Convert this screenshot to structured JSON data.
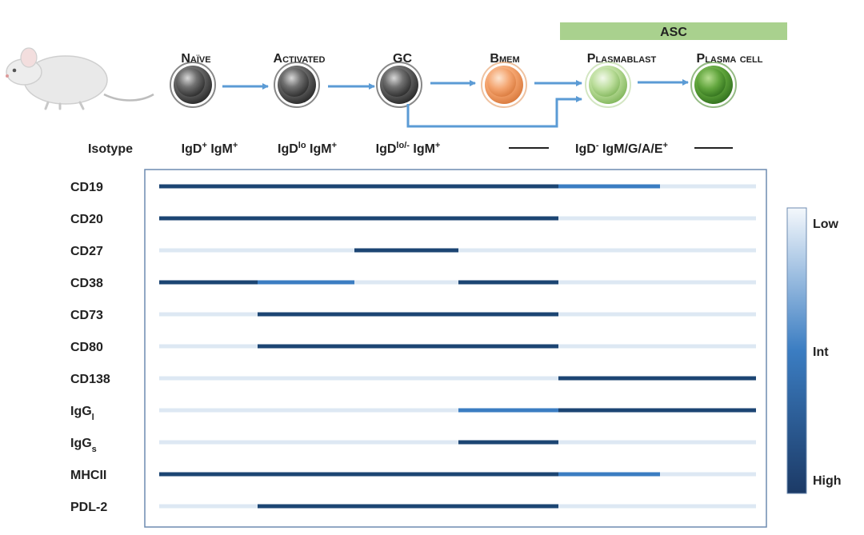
{
  "header": {
    "asc_label": "ASC",
    "stages": [
      {
        "name": "Naïve",
        "cell_color": "grey"
      },
      {
        "name": "Activated",
        "cell_color": "grey"
      },
      {
        "name": "GC",
        "cell_color": "grey"
      },
      {
        "name": "Bmem",
        "cell_color": "orange"
      },
      {
        "name": "Plasmablast",
        "cell_color": "light-green"
      },
      {
        "name": "Plasma cell",
        "cell_color": "green"
      }
    ]
  },
  "isotype": {
    "label": "Isotype",
    "naive": {
      "a": "IgD",
      "a_sup": "+",
      "b": " IgM",
      "b_sup": "+"
    },
    "activated": {
      "a": "IgD",
      "a_sup": "lo",
      "b": " IgM",
      "b_sup": "+"
    },
    "gc": {
      "a": "IgD",
      "a_sup": "lo/-",
      "b": " IgM",
      "b_sup": "+"
    },
    "late": {
      "a": "IgD",
      "a_sup": "-",
      "b": " IgM/G/A/E",
      "b_sup": "+"
    }
  },
  "markers": [
    {
      "name": "CD19",
      "levels": [
        "high",
        "high",
        "high",
        "high",
        "int",
        "low"
      ]
    },
    {
      "name": "CD20",
      "levels": [
        "high",
        "high",
        "high",
        "high",
        "low",
        "low"
      ]
    },
    {
      "name": "CD27",
      "levels": [
        "low",
        "low",
        "high",
        "low",
        "low",
        "low"
      ]
    },
    {
      "name": "CD38",
      "levels": [
        "high",
        "int",
        "low",
        "high",
        "low",
        "low"
      ]
    },
    {
      "name": "CD73",
      "levels": [
        "low",
        "high",
        "high",
        "high",
        "low",
        "low"
      ]
    },
    {
      "name": "CD80",
      "levels": [
        "low",
        "high",
        "high",
        "high",
        "low",
        "low"
      ]
    },
    {
      "name": "CD138",
      "levels": [
        "low",
        "low",
        "low",
        "low",
        "high",
        "high"
      ]
    },
    {
      "name": "IgG",
      "sub": "l",
      "levels": [
        "low",
        "low",
        "low",
        "int",
        "high",
        "high"
      ]
    },
    {
      "name": "IgG",
      "sub": "s",
      "levels": [
        "low",
        "low",
        "low",
        "high",
        "low",
        "low"
      ]
    },
    {
      "name": "MHCII",
      "levels": [
        "high",
        "high",
        "high",
        "high",
        "int",
        "low"
      ]
    },
    {
      "name": "PDL-2",
      "levels": [
        "low",
        "high",
        "high",
        "high",
        "low",
        "low"
      ]
    }
  ],
  "legend": {
    "low": "Low",
    "int": "Int",
    "high": "High"
  },
  "colors": {
    "high": "#1c4573",
    "int": "#3b7dc2",
    "low": "#dde8f3",
    "arrow": "#5b9bd5",
    "asc_bar": "#a9d18e",
    "frame": "#6d8bb0"
  }
}
